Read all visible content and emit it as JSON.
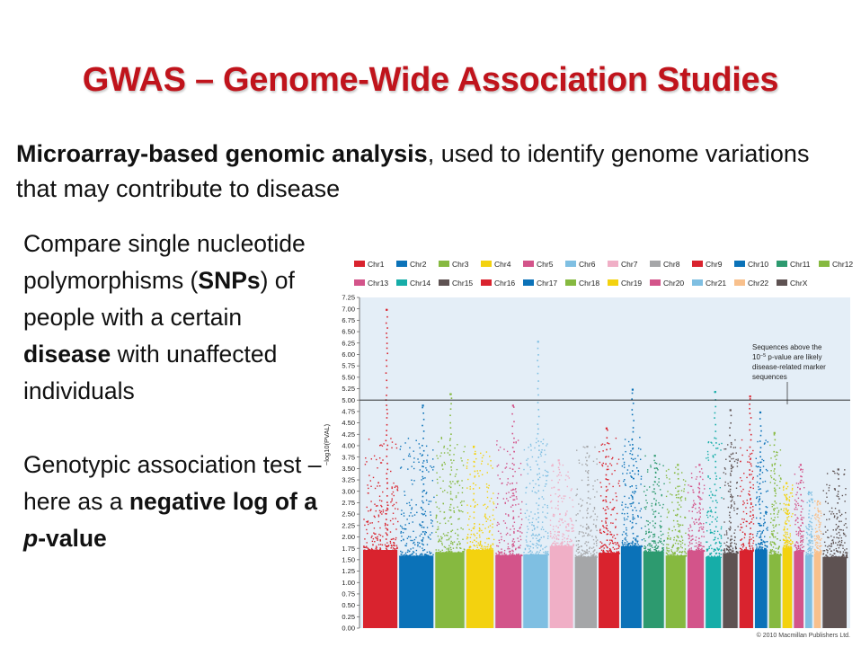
{
  "slide": {
    "title": "GWAS – Genome-Wide Association Studies",
    "intro": {
      "bold": "Microarray-based genomic analysis",
      "rest": ", used to identify genome variations that may contribute to disease"
    },
    "point1": {
      "p1": "Compare single nucleotide polymorphisms (",
      "b1": "SNPs",
      "p2": ") of people with a certain ",
      "b2": "disease",
      "p3": " with unaffected individuals"
    },
    "point2": {
      "p1": "Genotypic association test – here as a ",
      "b1": "negative log of a ",
      "b2": "p",
      "b3": "-value"
    }
  },
  "chart_data": {
    "type": "scatter",
    "title": "",
    "xlabel": "",
    "ylabel": "−log10(PVAL)",
    "ylim": [
      0,
      7.25
    ],
    "yticks": [
      "0.00",
      "0.25",
      "0.50",
      "0.75",
      "1.00",
      "1.25",
      "1.50",
      "1.75",
      "2.00",
      "2.25",
      "2.50",
      "2.75",
      "3.00",
      "3.25",
      "3.50",
      "3.75",
      "4.00",
      "4.25",
      "4.50",
      "4.75",
      "5.00",
      "5.25",
      "5.50",
      "5.75",
      "6.00",
      "6.25",
      "6.50",
      "6.75",
      "7.00",
      "7.25"
    ],
    "threshold": 5.0,
    "annotation": {
      "line1": "Sequences above the",
      "line2a": "10",
      "line2sup": "−5",
      "line2b": " p-value are likely",
      "line3": "disease-related marker",
      "line4": "sequences"
    },
    "copyright": "© 2010 Macmillan Publishers Ltd.",
    "legend_rows": [
      [
        "Chr1",
        "Chr2",
        "Chr3",
        "Chr4",
        "Chr5",
        "Chr6",
        "Chr7",
        "Chr8",
        "Chr9",
        "Chr10",
        "Chr11",
        "Chr12"
      ],
      [
        "Chr13",
        "Chr14",
        "Chr15",
        "Chr16",
        "Chr17",
        "Chr18",
        "Chr19",
        "Chr20",
        "Chr21",
        "Chr22",
        "ChrX"
      ]
    ],
    "chromosomes": [
      {
        "name": "Chr1",
        "color": "#d9232e",
        "size": 1.0,
        "peak": 7.0
      },
      {
        "name": "Chr2",
        "color": "#0b72b8",
        "size": 1.0,
        "peak": 4.9
      },
      {
        "name": "Chr3",
        "color": "#86b940",
        "size": 0.85,
        "peak": 5.15
      },
      {
        "name": "Chr4",
        "color": "#f3d20f",
        "size": 0.8,
        "peak": 4.0
      },
      {
        "name": "Chr5",
        "color": "#d3548a",
        "size": 0.76,
        "peak": 4.9
      },
      {
        "name": "Chr6",
        "color": "#7fbfe2",
        "size": 0.72,
        "peak": 6.3
      },
      {
        "name": "Chr7",
        "color": "#f0afc6",
        "size": 0.68,
        "peak": 3.7
      },
      {
        "name": "Chr8",
        "color": "#a5a6a8",
        "size": 0.64,
        "peak": 4.0
      },
      {
        "name": "Chr9",
        "color": "#d9232e",
        "size": 0.6,
        "peak": 4.4
      },
      {
        "name": "Chr10",
        "color": "#0b72b8",
        "size": 0.6,
        "peak": 5.25
      },
      {
        "name": "Chr11",
        "color": "#2d9a6f",
        "size": 0.6,
        "peak": 3.8
      },
      {
        "name": "Chr12",
        "color": "#86b940",
        "size": 0.58,
        "peak": 3.6
      },
      {
        "name": "Chr13",
        "color": "#d3548a",
        "size": 0.48,
        "peak": 3.6
      },
      {
        "name": "Chr14",
        "color": "#16ada8",
        "size": 0.45,
        "peak": 5.2
      },
      {
        "name": "Chr15",
        "color": "#5e5252",
        "size": 0.43,
        "peak": 4.8
      },
      {
        "name": "Chr16",
        "color": "#d9232e",
        "size": 0.4,
        "peak": 5.1
      },
      {
        "name": "Chr17",
        "color": "#0b72b8",
        "size": 0.36,
        "peak": 4.75
      },
      {
        "name": "Chr18",
        "color": "#86b940",
        "size": 0.34,
        "peak": 4.3
      },
      {
        "name": "Chr19",
        "color": "#f3d20f",
        "size": 0.28,
        "peak": 3.2
      },
      {
        "name": "Chr20",
        "color": "#d3548a",
        "size": 0.28,
        "peak": 3.6
      },
      {
        "name": "Chr21",
        "color": "#7fbfe2",
        "size": 0.2,
        "peak": 3.0
      },
      {
        "name": "Chr22",
        "color": "#f8c08c",
        "size": 0.2,
        "peak": 2.8
      },
      {
        "name": "ChrX",
        "color": "#5e5252",
        "size": 0.7,
        "peak": 3.5
      }
    ]
  }
}
